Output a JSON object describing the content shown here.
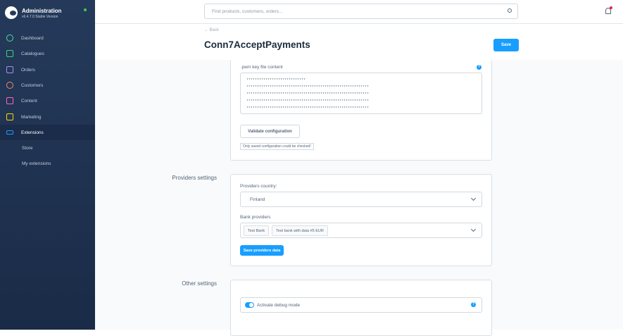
{
  "sidebar": {
    "title": "Administration",
    "version": "v6.4.7.0 Stable Version",
    "items": [
      {
        "label": "Dashboard",
        "icon": "dashboard-icon",
        "color": "#57d9a3"
      },
      {
        "label": "Catalogues",
        "icon": "catalogue-icon",
        "color": "#3ed17e"
      },
      {
        "label": "Orders",
        "icon": "orders-icon",
        "color": "#a092f0"
      },
      {
        "label": "Customers",
        "icon": "customers-icon",
        "color": "#f88962"
      },
      {
        "label": "Content",
        "icon": "content-icon",
        "color": "#ff68b4"
      },
      {
        "label": "Marketing",
        "icon": "marketing-icon",
        "color": "#ffd700"
      },
      {
        "label": "Extensions",
        "icon": "extensions-icon",
        "color": "#189eff"
      }
    ],
    "sub_items": [
      "Store",
      "My extensions"
    ]
  },
  "header": {
    "search_placeholder": "Find products, customers, orders..."
  },
  "page": {
    "back": "Back",
    "title": "Conn7AcceptPayments",
    "save": "Save"
  },
  "config": {
    "pem_label": ".pem key file content",
    "pem_value": "****************************\n**********************************************************\n**********************************************************\n**********************************************************\n**********************************************************",
    "validate": "Validate configuration",
    "note": "Only saved configuration could be checked!"
  },
  "providers": {
    "section": "Providers settings",
    "country_label": "Providers country:",
    "country": "Finland",
    "bank_label": "Bank providers",
    "banks": [
      "Test Bank",
      "Test bank with data #5 EUR"
    ],
    "save": "Save providers data"
  },
  "other": {
    "section": "Other settings",
    "debug_label": "Activate debug mode",
    "debug_on": true
  }
}
